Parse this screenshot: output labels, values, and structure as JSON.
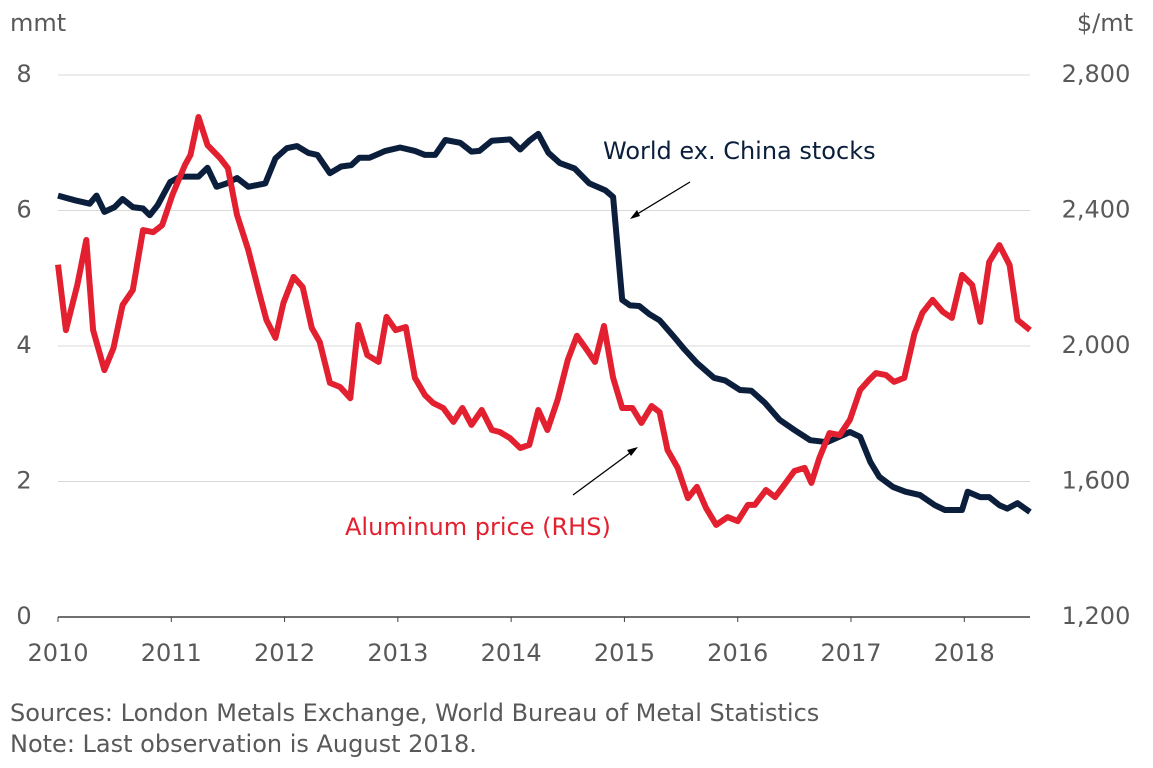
{
  "chart_data": {
    "type": "line",
    "y_label": "mmt",
    "y2_label": "$/mt",
    "annotations": [
      "World ex. China stocks",
      "Aluminum price (RHS)"
    ],
    "xlim": [
      2010,
      2018.58
    ],
    "xticks": [
      2010,
      2011,
      2012,
      2013,
      2014,
      2015,
      2016,
      2017,
      2018
    ],
    "ylim": [
      0,
      8
    ],
    "yticks": [
      0,
      2,
      4,
      6,
      8
    ],
    "y2lim": [
      1200,
      2800
    ],
    "y2ticks": [
      {
        "value": 1200,
        "label": "1,200"
      },
      {
        "value": 1600,
        "label": "1,600"
      },
      {
        "value": 2000,
        "label": "2,000"
      },
      {
        "value": 2400,
        "label": "2,400"
      },
      {
        "value": 2800,
        "label": "2,800"
      }
    ],
    "grid": true,
    "series": [
      {
        "name": "World ex. China stocks",
        "color": "#0b1f3d",
        "x": [
          2010.0,
          2010.15,
          2010.28,
          2010.34,
          2010.41,
          2010.5,
          2010.57,
          2010.66,
          2010.75,
          2010.81,
          2010.88,
          2010.99,
          2011.08,
          2011.24,
          2011.32,
          2011.4,
          2011.49,
          2011.58,
          2011.68,
          2011.83,
          2011.92,
          2012.02,
          2012.11,
          2012.21,
          2012.29,
          2012.4,
          2012.5,
          2012.59,
          2012.66,
          2012.75,
          2012.89,
          2013.02,
          2013.15,
          2013.24,
          2013.33,
          2013.42,
          2013.55,
          2013.65,
          2013.72,
          2013.83,
          2013.99,
          2014.08,
          2014.16,
          2014.24,
          2014.33,
          2014.43,
          2014.56,
          2014.69,
          2014.83,
          2014.9,
          2014.98,
          2015.05,
          2015.13,
          2015.22,
          2015.31,
          2015.44,
          2015.53,
          2015.64,
          2015.79,
          2015.89,
          2016.02,
          2016.12,
          2016.24,
          2016.37,
          2016.5,
          2016.64,
          2016.79,
          2016.99,
          2017.08,
          2017.17,
          2017.25,
          2017.37,
          2017.48,
          2017.61,
          2017.74,
          2017.83,
          2017.98,
          2018.03,
          2018.14,
          2018.22,
          2018.31,
          2018.38,
          2018.47,
          2018.58
        ],
        "values": [
          6.22,
          6.15,
          6.1,
          6.22,
          5.98,
          6.05,
          6.17,
          6.05,
          6.03,
          5.93,
          6.08,
          6.42,
          6.5,
          6.5,
          6.63,
          6.35,
          6.4,
          6.48,
          6.35,
          6.4,
          6.77,
          6.92,
          6.95,
          6.85,
          6.82,
          6.55,
          6.65,
          6.67,
          6.78,
          6.78,
          6.88,
          6.93,
          6.88,
          6.82,
          6.82,
          7.04,
          7.0,
          6.87,
          6.88,
          7.03,
          7.05,
          6.9,
          7.03,
          7.13,
          6.85,
          6.7,
          6.62,
          6.4,
          6.3,
          6.2,
          4.68,
          4.6,
          4.59,
          4.47,
          4.38,
          4.13,
          3.95,
          3.75,
          3.53,
          3.49,
          3.35,
          3.34,
          3.16,
          2.91,
          2.76,
          2.61,
          2.58,
          2.73,
          2.66,
          2.29,
          2.07,
          1.92,
          1.85,
          1.8,
          1.65,
          1.58,
          1.58,
          1.85,
          1.77,
          1.77,
          1.65,
          1.6,
          1.68,
          1.55
        ]
      },
      {
        "name": "Aluminum price (RHS)",
        "color": "#e3202f",
        "axis": "y2",
        "x": [
          2010.0,
          2010.07,
          2010.17,
          2010.25,
          2010.31,
          2010.41,
          2010.49,
          2010.57,
          2010.66,
          2010.75,
          2010.84,
          2010.92,
          2011.01,
          2011.12,
          2011.17,
          2011.24,
          2011.32,
          2011.43,
          2011.5,
          2011.58,
          2011.68,
          2011.77,
          2011.84,
          2011.92,
          2011.99,
          2012.08,
          2012.16,
          2012.24,
          2012.31,
          2012.4,
          2012.49,
          2012.58,
          2012.65,
          2012.73,
          2012.83,
          2012.9,
          2012.98,
          2013.07,
          2013.15,
          2013.24,
          2013.31,
          2013.4,
          2013.49,
          2013.57,
          2013.65,
          2013.74,
          2013.83,
          2013.9,
          2013.99,
          2014.08,
          2014.16,
          2014.24,
          2014.32,
          2014.41,
          2014.5,
          2014.58,
          2014.67,
          2014.74,
          2014.82,
          2014.9,
          2014.98,
          2015.07,
          2015.15,
          2015.24,
          2015.31,
          2015.38,
          2015.47,
          2015.56,
          2015.64,
          2015.72,
          2015.81,
          2015.91,
          2016.0,
          2016.09,
          2016.15,
          2016.25,
          2016.33,
          2016.41,
          2016.5,
          2016.59,
          2016.65,
          2016.72,
          2016.81,
          2016.9,
          2016.99,
          2017.08,
          2017.16,
          2017.22,
          2017.31,
          2017.38,
          2017.47,
          2017.56,
          2017.63,
          2017.72,
          2017.81,
          2017.89,
          2017.98,
          2018.07,
          2018.14,
          2018.22,
          2018.31,
          2018.4,
          2018.47,
          2018.58
        ],
        "values": [
          2240,
          2047,
          2180,
          2313,
          2047,
          1929,
          1994,
          2121,
          2165,
          2342,
          2336,
          2357,
          2446,
          2534,
          2564,
          2676,
          2593,
          2555,
          2525,
          2387,
          2283,
          2165,
          2077,
          2024,
          2127,
          2204,
          2174,
          2053,
          2012,
          1891,
          1879,
          1846,
          2062,
          1973,
          1953,
          2086,
          2047,
          2056,
          1906,
          1855,
          1832,
          1817,
          1776,
          1817,
          1767,
          1811,
          1752,
          1746,
          1728,
          1699,
          1708,
          1811,
          1752,
          1841,
          1959,
          2030,
          1988,
          1953,
          2059,
          1906,
          1817,
          1817,
          1773,
          1823,
          1805,
          1693,
          1640,
          1551,
          1584,
          1522,
          1472,
          1495,
          1483,
          1531,
          1531,
          1575,
          1554,
          1590,
          1631,
          1640,
          1596,
          1669,
          1743,
          1737,
          1782,
          1870,
          1900,
          1920,
          1914,
          1894,
          1906,
          2036,
          2098,
          2136,
          2101,
          2083,
          2210,
          2180,
          2071,
          2248,
          2298,
          2239,
          2077,
          2047
        ]
      }
    ]
  },
  "footer": {
    "sources": "Sources: London Metals Exchange, World Bureau of Metal Statistics",
    "note": "Note: Last observation is August 2018."
  }
}
